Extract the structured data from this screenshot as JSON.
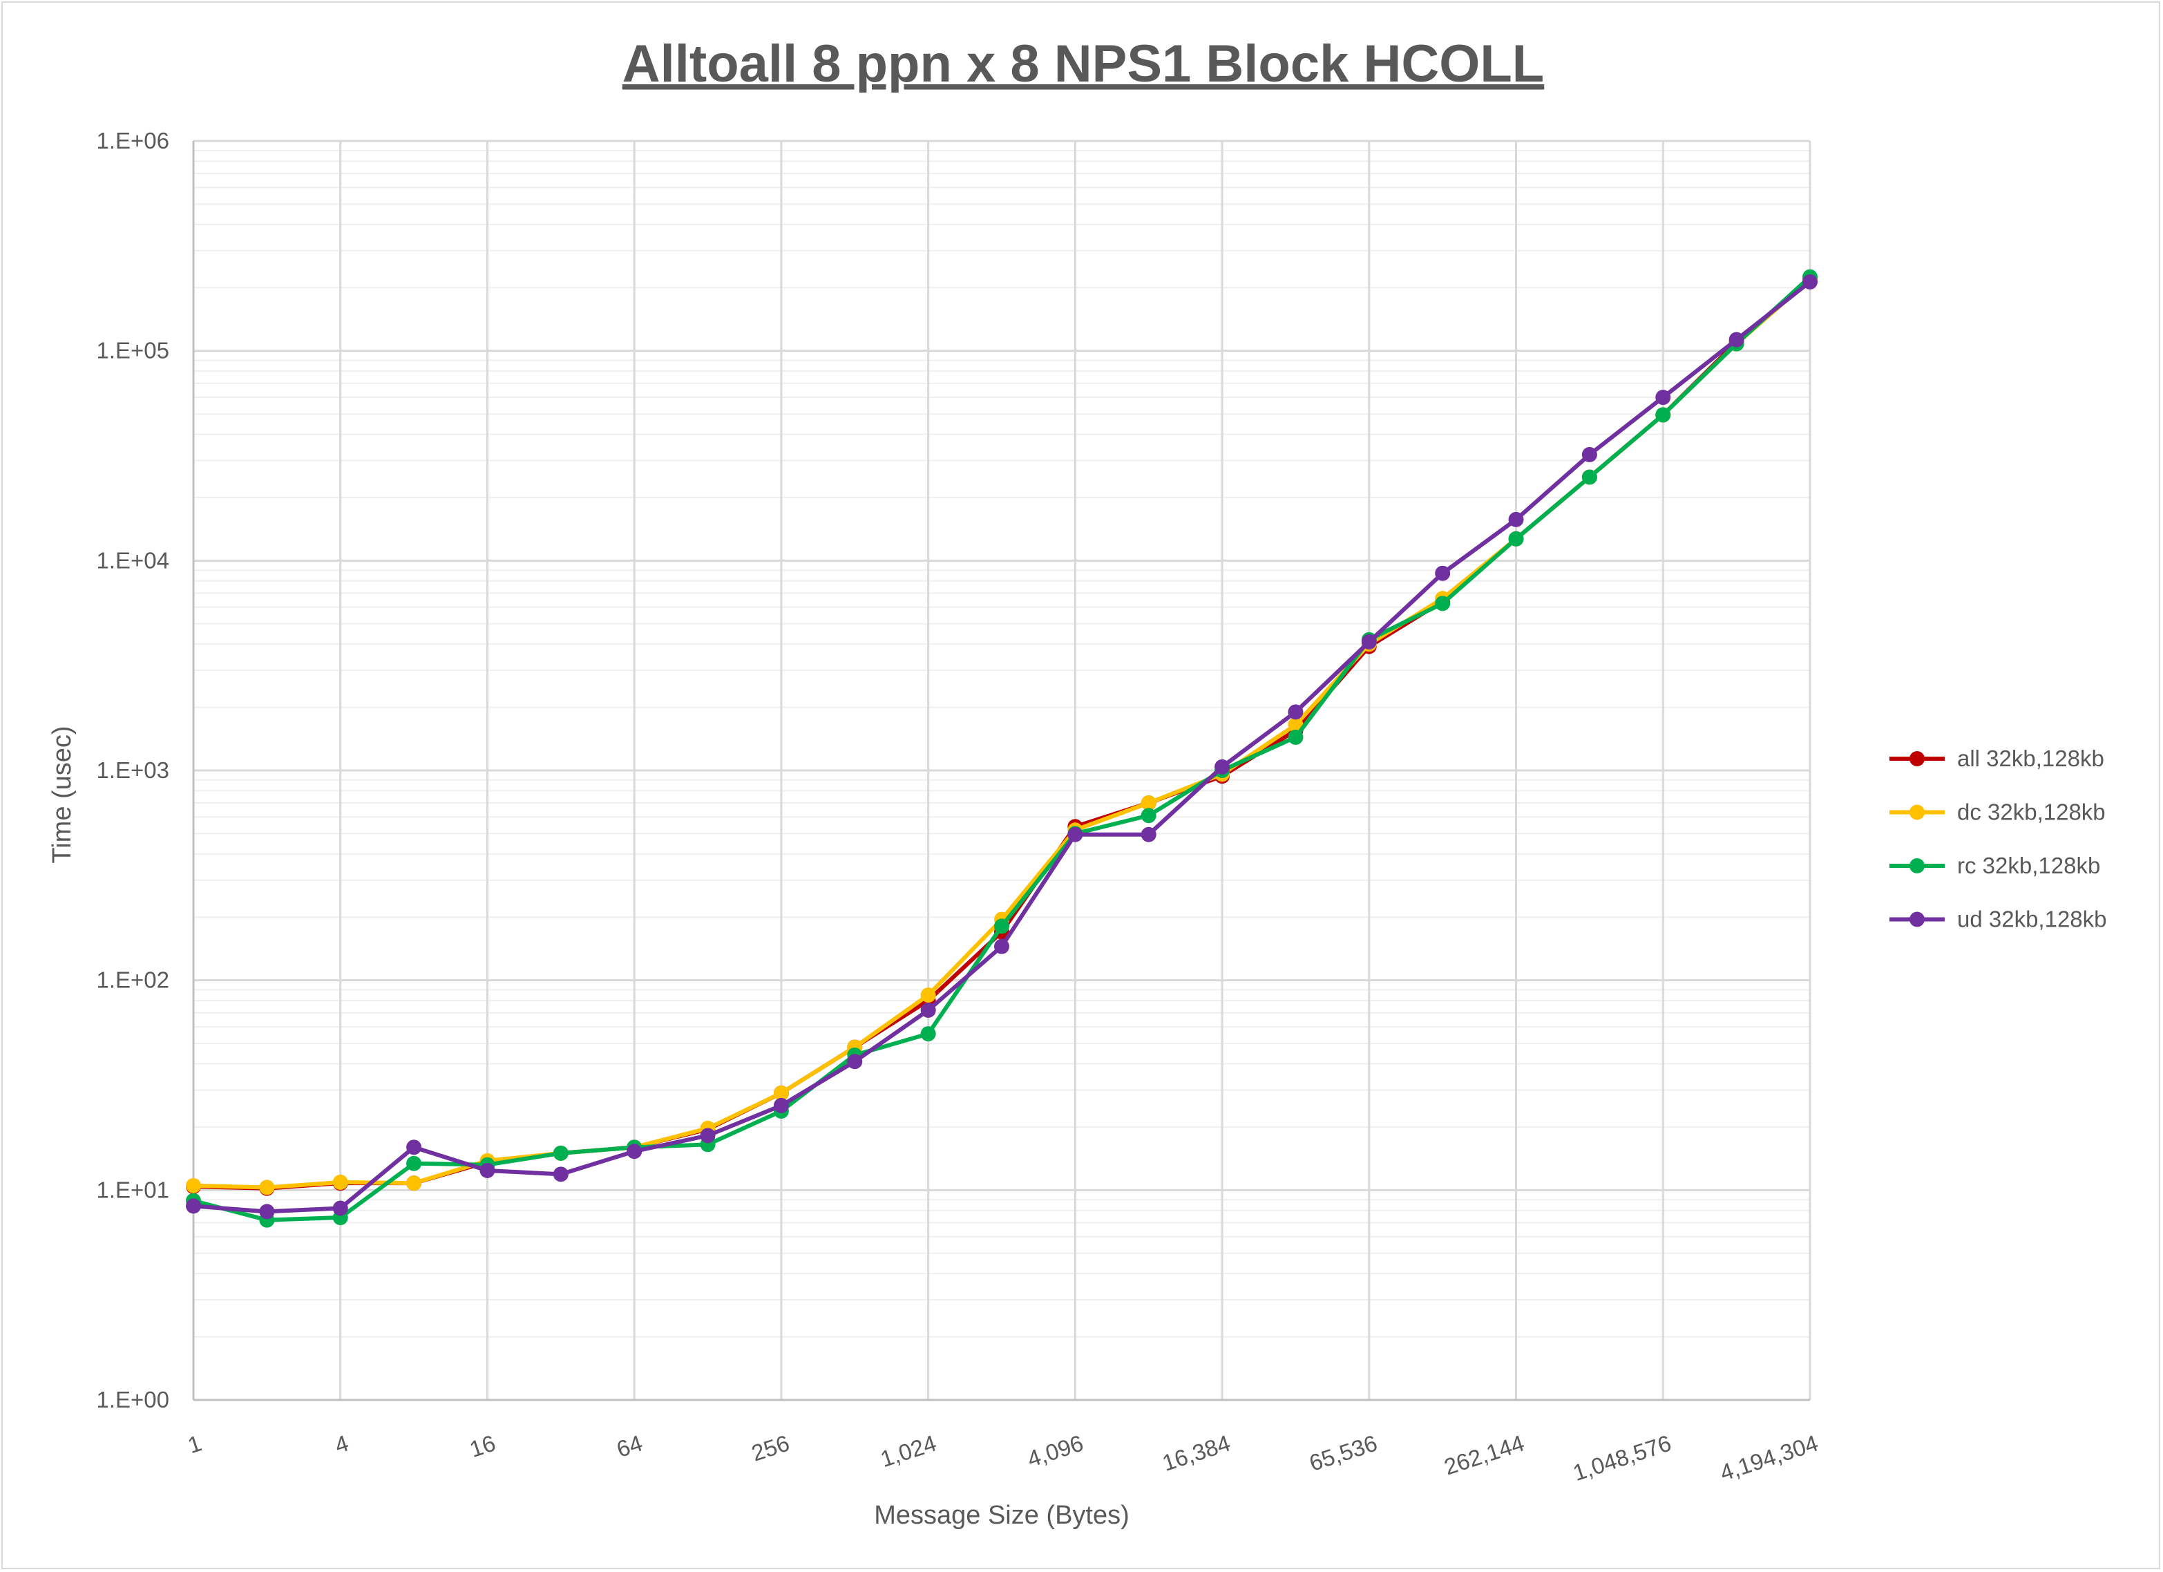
{
  "chart_data": {
    "type": "line",
    "title": "Alltoall 8 ppn x 8 NPS1 Block HCOLL",
    "xlabel": "Message Size (Bytes)",
    "ylabel": "Time (usec)",
    "x_scale": "log2",
    "y_scale": "log10",
    "ylim": [
      1,
      1000000
    ],
    "y_tick_labels": [
      "1.E+00",
      "1.E+01",
      "1.E+02",
      "1.E+03",
      "1.E+04",
      "1.E+05",
      "1.E+06"
    ],
    "x_tick_labels": [
      "1",
      "4",
      "16",
      "64",
      "256",
      "1,024",
      "4,096",
      "16,384",
      "65,536",
      "262,144",
      "1,048,576",
      "4,194,304"
    ],
    "x": [
      1,
      2,
      4,
      8,
      16,
      32,
      64,
      128,
      256,
      512,
      1024,
      2048,
      4096,
      8192,
      16384,
      32768,
      65536,
      131072,
      262144,
      524288,
      1048576,
      2097152,
      4194304
    ],
    "grid": true,
    "legend_position": "right",
    "series": [
      {
        "name": "all 32kb,128kb",
        "color": "#c00000",
        "values": [
          10.4,
          10.2,
          10.8,
          10.8,
          13.6,
          15,
          16,
          19.5,
          29,
          48,
          80,
          170,
          540,
          700,
          940,
          1550,
          3900,
          6400,
          12700,
          25000,
          49500,
          110000,
          220000
        ]
      },
      {
        "name": "dc 32kb,128kb",
        "color": "#ffc000",
        "values": [
          10.5,
          10.3,
          10.9,
          10.8,
          13.8,
          15,
          16,
          19.7,
          29,
          48,
          85,
          195,
          520,
          700,
          960,
          1650,
          4000,
          6600,
          12700,
          25000,
          49500,
          108000,
          218000
        ]
      },
      {
        "name": "rc 32kb,128kb",
        "color": "#00b050",
        "values": [
          8.9,
          7.2,
          7.4,
          13.4,
          13.2,
          15,
          16,
          16.5,
          23.8,
          44,
          55.6,
          181,
          500,
          610,
          1000,
          1440,
          4200,
          6250,
          12700,
          25000,
          49500,
          108000,
          225000
        ]
      },
      {
        "name": "ud 32kb,128kb",
        "color": "#7030a0",
        "values": [
          8.4,
          7.9,
          8.2,
          16,
          12.4,
          11.9,
          15.3,
          18.2,
          25.3,
          41,
          72,
          145,
          495,
          495,
          1040,
          1900,
          4100,
          8700,
          15700,
          32000,
          60000,
          113000,
          213000
        ]
      }
    ]
  }
}
